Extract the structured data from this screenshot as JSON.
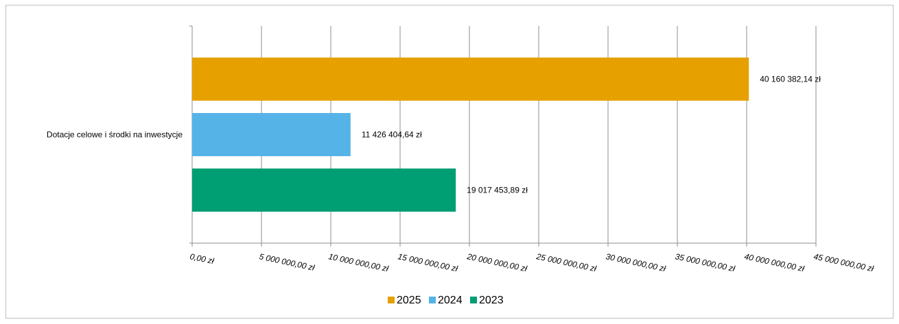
{
  "chart_data": {
    "type": "bar",
    "orientation": "horizontal",
    "categories": [
      "Dotacje celowe i środki na inwestycje"
    ],
    "series": [
      {
        "name": "2025",
        "values": [
          40160382.14
        ],
        "label": "40 160 382,14 zł",
        "color": "#e6a100"
      },
      {
        "name": "2024",
        "values": [
          11426404.64
        ],
        "label": "11 426 404,64 zł",
        "color": "#56b3e8"
      },
      {
        "name": "2023",
        "values": [
          19017453.89
        ],
        "label": "19 017 453,89 zł",
        "color": "#009e73"
      }
    ],
    "xlim": [
      0,
      45000000
    ],
    "x_ticks": [
      0,
      5000000,
      10000000,
      15000000,
      20000000,
      25000000,
      30000000,
      35000000,
      40000000,
      45000000
    ],
    "x_tick_labels": [
      "0,00 zł",
      "5 000 000,00 zł",
      "10 000 000,00 zł",
      "15 000 000,00 zł",
      "20 000 000,00 zł",
      "25 000 000,00 zł",
      "30 000 000,00 zł",
      "35 000 000,00 zł",
      "40 000 000,00 zł",
      "45 000 000,00 zł"
    ],
    "grid": true,
    "legend_position": "bottom",
    "legend": [
      "2025",
      "2024",
      "2023"
    ]
  }
}
